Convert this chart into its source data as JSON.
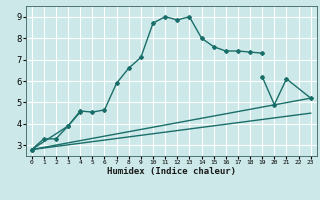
{
  "xlabel": "Humidex (Indice chaleur)",
  "background_color": "#cce8e8",
  "grid_color": "#ffffff",
  "line_color": "#1a6e6a",
  "xlim": [
    -0.5,
    23.5
  ],
  "ylim": [
    2.5,
    9.5
  ],
  "xticks": [
    0,
    1,
    2,
    3,
    4,
    5,
    6,
    7,
    8,
    9,
    10,
    11,
    12,
    13,
    14,
    15,
    16,
    17,
    18,
    19,
    20,
    21,
    22,
    23
  ],
  "yticks": [
    3,
    4,
    5,
    6,
    7,
    8,
    9
  ],
  "series1_x": [
    0,
    1,
    2,
    3,
    4,
    5,
    6,
    7,
    8,
    9,
    10,
    11,
    12,
    13,
    14,
    15,
    16,
    17,
    18,
    19
  ],
  "series1_y": [
    2.8,
    3.3,
    3.3,
    3.9,
    4.6,
    4.55,
    4.65,
    5.9,
    6.6,
    7.1,
    8.7,
    9.0,
    8.85,
    9.0,
    8.0,
    7.6,
    7.4,
    7.4,
    7.35,
    7.3
  ],
  "series2_x": [
    0,
    3,
    4,
    19,
    20,
    21,
    23
  ],
  "series2_y": [
    2.8,
    3.9,
    4.55,
    6.2,
    4.9,
    6.1,
    5.2
  ],
  "line3_x": [
    0,
    23
  ],
  "line3_y": [
    2.8,
    4.5
  ],
  "line4_x": [
    0,
    23
  ],
  "line4_y": [
    2.8,
    5.2
  ]
}
